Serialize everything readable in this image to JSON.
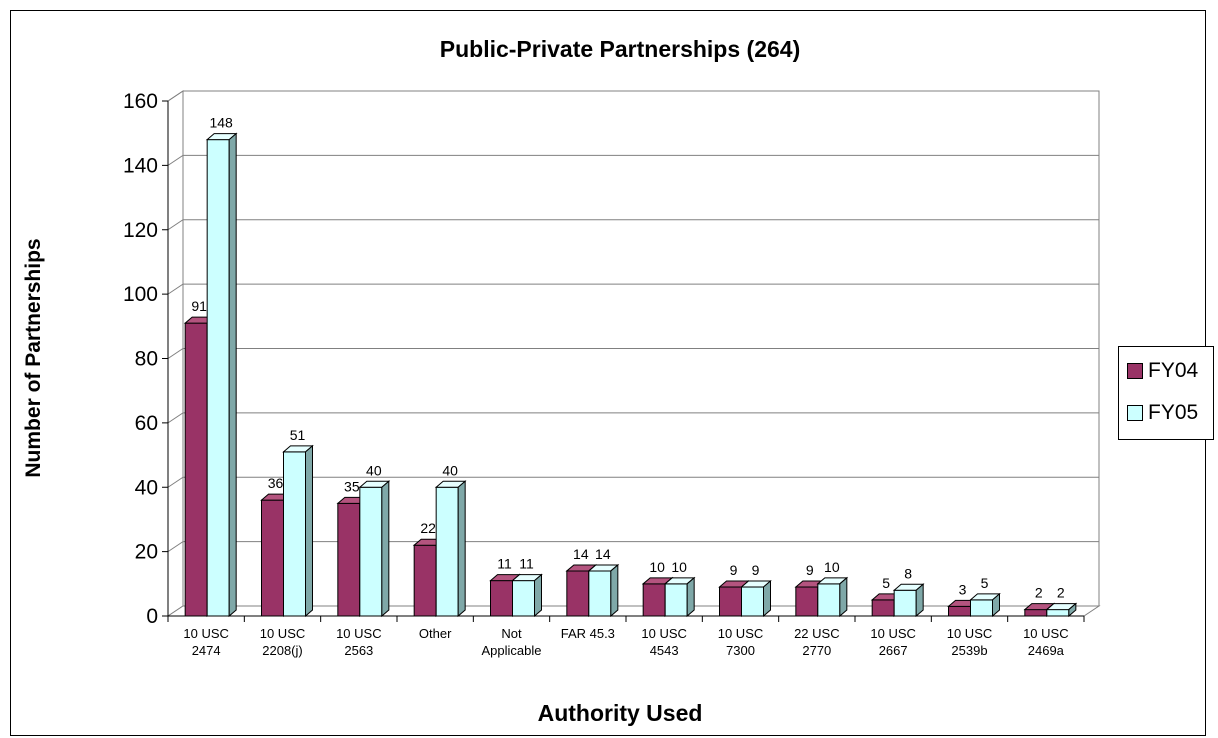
{
  "chart_data": {
    "type": "bar",
    "title": "Public-Private Partnerships (264)",
    "xlabel": "Authority Used",
    "ylabel": "Number of Partnerships",
    "ylim": [
      0,
      160
    ],
    "yticks": [
      0,
      20,
      40,
      60,
      80,
      100,
      120,
      140,
      160
    ],
    "grid": true,
    "legend_position": "right",
    "categories": [
      [
        "10 USC",
        "2474"
      ],
      [
        "10 USC",
        "2208(j)"
      ],
      [
        "10 USC",
        "2563"
      ],
      [
        "Other"
      ],
      [
        "Not",
        "Applicable"
      ],
      [
        "FAR 45.3"
      ],
      [
        "10 USC",
        "4543"
      ],
      [
        "10 USC",
        "7300"
      ],
      [
        "22 USC",
        "2770"
      ],
      [
        "10 USC",
        "2667"
      ],
      [
        "10 USC",
        "2539b"
      ],
      [
        "10 USC",
        "2469a"
      ]
    ],
    "series": [
      {
        "name": "FY04",
        "color": "#993366",
        "side": "#5e1f40",
        "top": "#b4547f",
        "values": [
          91,
          36,
          35,
          22,
          11,
          14,
          10,
          9,
          9,
          5,
          3,
          2
        ]
      },
      {
        "name": "FY05",
        "color": "#ccffff",
        "side": "#7fa8a8",
        "top": "#e6ffff",
        "values": [
          148,
          51,
          40,
          40,
          11,
          14,
          10,
          9,
          10,
          8,
          5,
          2
        ]
      }
    ]
  }
}
